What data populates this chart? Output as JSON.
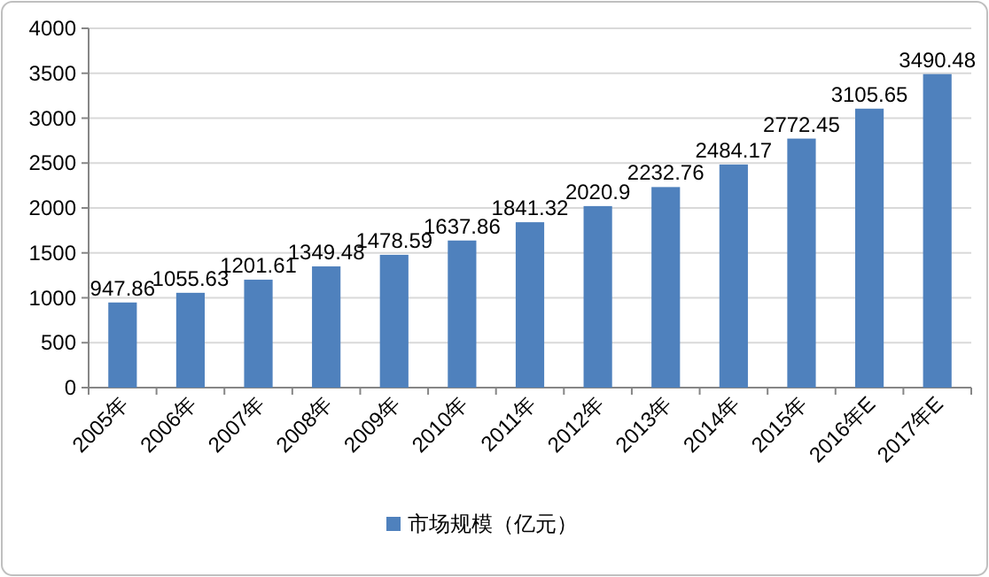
{
  "chart_data": {
    "type": "bar",
    "categories": [
      "2005年",
      "2006年",
      "2007年",
      "2008年",
      "2009年",
      "2010年",
      "2011年",
      "2012年",
      "2013年",
      "2014年",
      "2015年",
      "2016年E",
      "2017年E"
    ],
    "series": [
      {
        "name": "市场规模（亿元）",
        "color": "#4f81bd",
        "values": [
          947.86,
          1055.63,
          1201.61,
          1349.48,
          1478.59,
          1637.86,
          1841.32,
          2020.9,
          2232.76,
          2484.17,
          2772.45,
          3105.65,
          3490.48
        ]
      }
    ],
    "ylim": [
      0,
      4000
    ],
    "yticks": [
      0,
      500,
      1000,
      1500,
      2000,
      2500,
      3000,
      3500,
      4000
    ],
    "grid": "y",
    "legend": "bottom",
    "data_labels": true
  }
}
